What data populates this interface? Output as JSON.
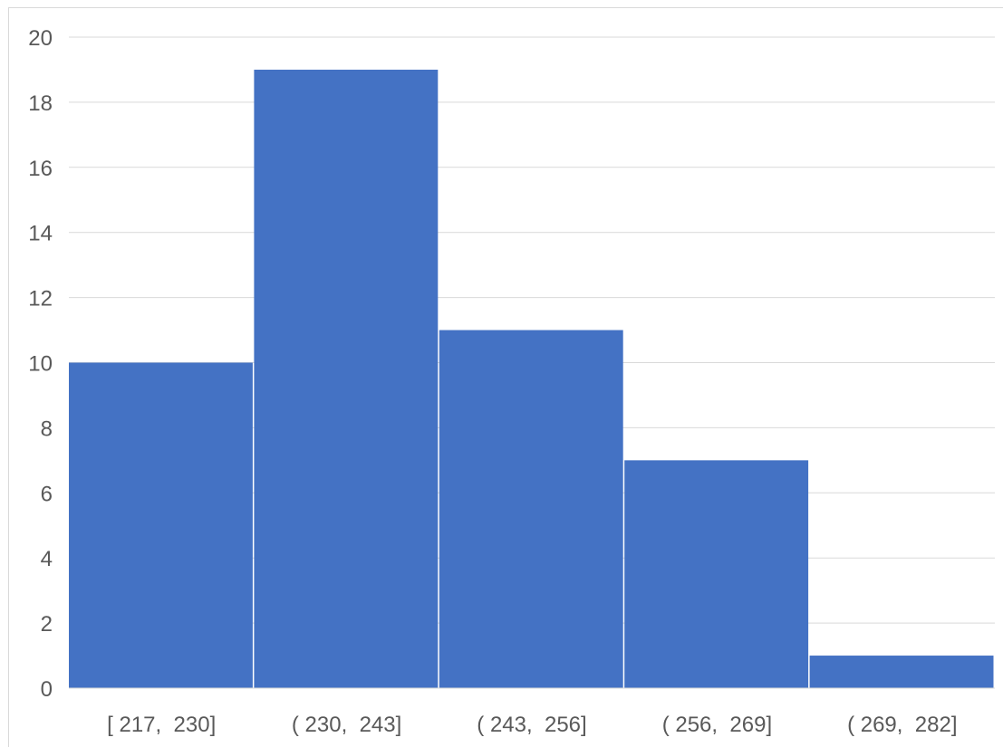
{
  "chart_data": {
    "type": "bar",
    "categories": [
      "[ 217,  230]",
      "( 230,  243]",
      "( 243,  256]",
      "( 256,  269]",
      "( 269,  282]"
    ],
    "values": [
      10,
      19,
      11,
      7,
      1
    ],
    "title": "",
    "xlabel": "",
    "ylabel": "",
    "ylim": [
      0,
      20
    ],
    "yticks": [
      "0",
      "2",
      "4",
      "6",
      "8",
      "10",
      "12",
      "14",
      "16",
      "18",
      "20"
    ],
    "grid": true,
    "legend": "none",
    "bar_color": "#4472c4",
    "gridline_color": "#d9d9d9",
    "label_color": "#595959"
  }
}
